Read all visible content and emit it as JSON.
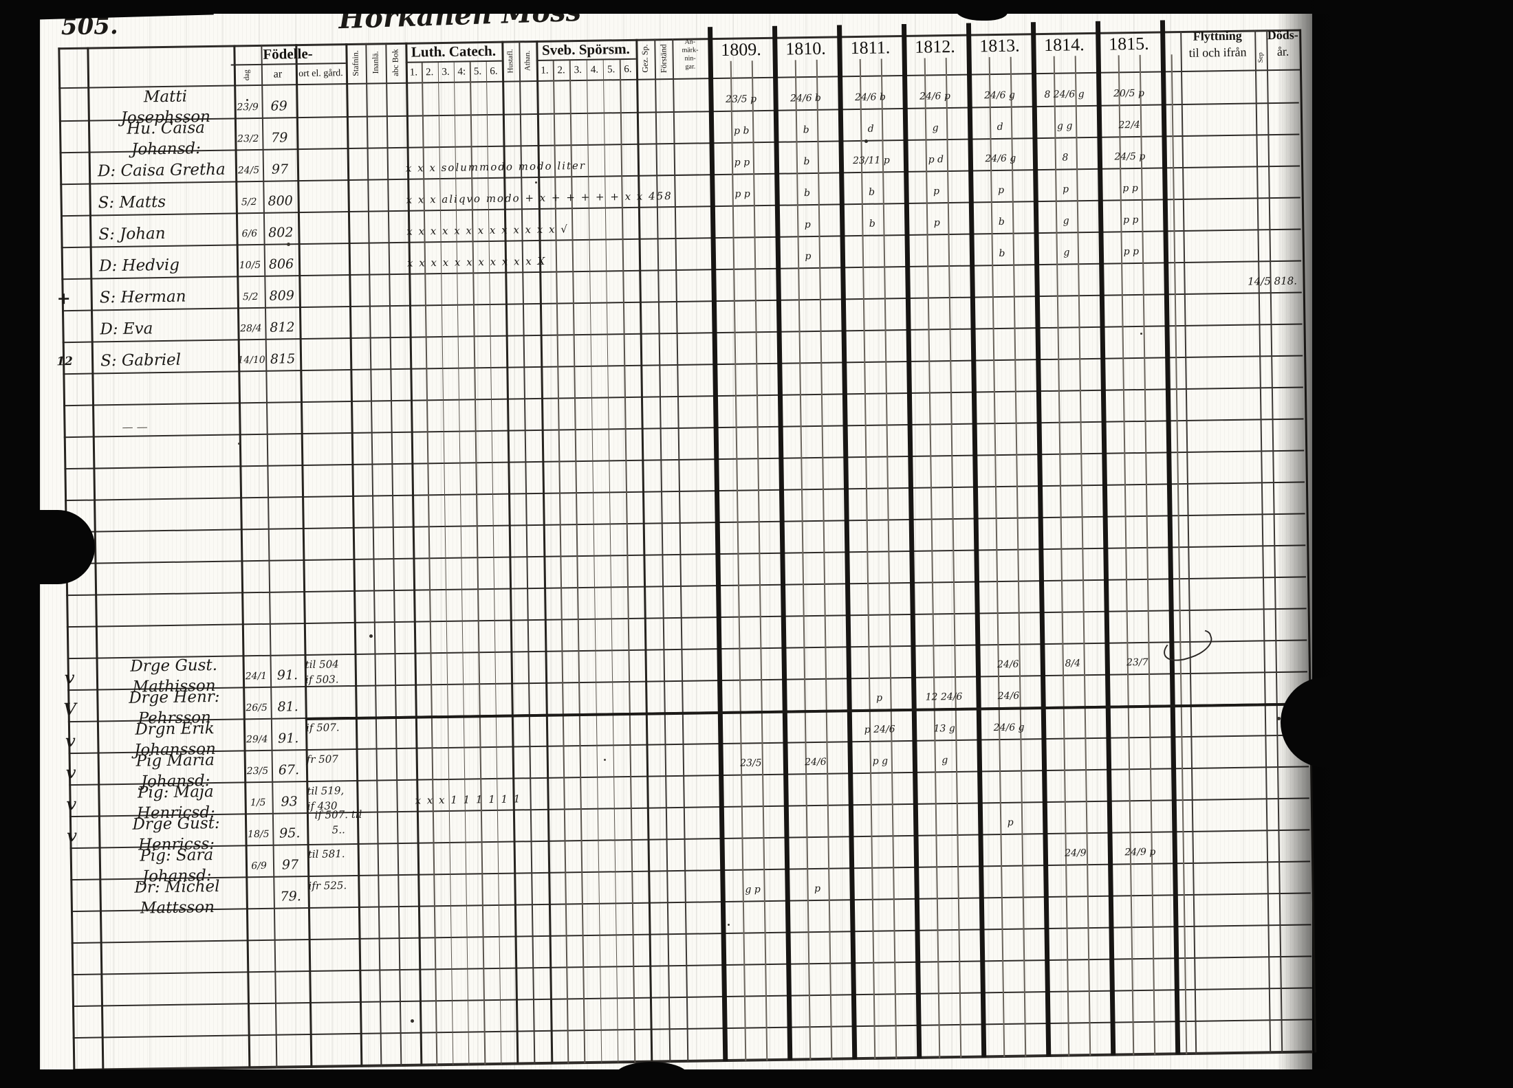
{
  "page": {
    "number": "505.",
    "title": "Horkanen Moss"
  },
  "header": {
    "fodelse": {
      "label": "Födelle-",
      "sub_dag": "dag",
      "sub_ar": "ar",
      "sub_ort": "ort el. gård."
    },
    "vcols1": [
      "Stafnin.",
      "Inanlä.",
      "abc Bok"
    ],
    "luth": {
      "label": "Luth. Catech.",
      "nums": [
        "1.",
        "2.",
        "3.",
        "4:",
        "5.",
        "6."
      ]
    },
    "vcols2": [
      "Hustafl.",
      "Athan."
    ],
    "sveb": {
      "label": "Sveb. Spörsm.",
      "nums": [
        "1.",
        "2.",
        "3.",
        "4.",
        "5.",
        "6."
      ]
    },
    "vcols3": [
      "Gez. Sp.",
      "Förständ"
    ],
    "anm": [
      "An-",
      "märk-",
      "nin-",
      "gar."
    ],
    "years": [
      "1809.",
      "1810.",
      "1811.",
      "1812.",
      "1813.",
      "1814.",
      "1815."
    ],
    "flyttning": [
      "Flyttning",
      "til och ifrån"
    ],
    "sep": "Sep",
    "dods": [
      "Döds-",
      "år."
    ]
  },
  "margin": {
    "cross": "+",
    "note12": "12",
    "dashes": "—  —"
  },
  "rows_upper": [
    {
      "check": "",
      "name": "Matti Josephsson",
      "dag": "23/9",
      "ar": "69",
      "catech": "",
      "years": [
        "23/5 p",
        "24/6 b",
        "24/6 b",
        "24/6 p",
        "24/6 g",
        "8 24/6 g",
        "20/5 p"
      ],
      "dods": ""
    },
    {
      "check": "",
      "name": "Hu. Caisa Johansd:",
      "dag": "23/2",
      "ar": "79",
      "catech": "",
      "years": [
        "p b",
        "b",
        "d",
        "g",
        "d",
        "g g",
        "22/4"
      ],
      "dods": ""
    },
    {
      "check": "",
      "name": "D: Caisa Gretha",
      "dag": "24/5",
      "ar": "97",
      "catech": "x x x    solummodo modo liter",
      "years": [
        "p p",
        "b",
        "23/11 p",
        "p d",
        "24/6 g",
        "8",
        "24/5 p"
      ],
      "dods": ""
    },
    {
      "check": "",
      "name": "S: Matts",
      "dag": "5/2",
      "ar": "800",
      "catech": "x x x   aliqvo modo  + x + + + + + x x  458",
      "years": [
        "p p",
        "b",
        "b",
        "p",
        "p",
        "p",
        "p p"
      ],
      "dods": ""
    },
    {
      "check": "",
      "name": "S: Johan",
      "dag": "6/6",
      "ar": "802",
      "catech": "x x x x x x x x x x x x x √",
      "years": [
        "",
        "p",
        "b",
        "p",
        "b",
        "g",
        "p p"
      ],
      "dods": ""
    },
    {
      "check": "",
      "name": "D: Hedvig",
      "dag": "10/5",
      "ar": "806",
      "catech": "x x x x x x x x x x x X",
      "years": [
        "",
        "p",
        "",
        "",
        "b",
        "g",
        "p p"
      ],
      "dods": ""
    },
    {
      "check": "+",
      "name": "S: Herman",
      "dag": "5/2",
      "ar": "809",
      "catech": "",
      "years": [
        "",
        "",
        "",
        "",
        "",
        "",
        ""
      ],
      "dods": "14/5 818."
    },
    {
      "check": "",
      "name": "D: Eva",
      "dag": "28/4",
      "ar": "812",
      "catech": "",
      "years": [
        "",
        "",
        "",
        "",
        "",
        "",
        ""
      ],
      "dods": ""
    },
    {
      "check": "12",
      "name": "S: Gabriel",
      "dag": "14/10",
      "ar": "815",
      "catech": "",
      "years": [
        "",
        "",
        "",
        "",
        "",
        "",
        ""
      ],
      "dods": ""
    }
  ],
  "rows_lower": [
    {
      "check": "v",
      "name": "Drge Gust. Mathisson",
      "dag": "24/1",
      "ar": "91.",
      "ort": [
        "til 504",
        "if 503."
      ],
      "catech": "",
      "years": [
        "",
        "",
        "",
        "",
        "24/6",
        "8/4",
        "23/7"
      ]
    },
    {
      "check": "V",
      "name": "Drge Henr: Pehrsson",
      "dag": "26/5",
      "ar": "81.",
      "ort": [
        "",
        ""
      ],
      "catech": "",
      "years": [
        "",
        "",
        "p",
        "12 24/6",
        "24/6",
        "",
        ""
      ]
    },
    {
      "check": "v",
      "name": "Drgn Erik Johansson",
      "dag": "29/4",
      "ar": "91.",
      "ort": [
        "if 507.",
        ""
      ],
      "catech": "",
      "years": [
        "",
        "",
        "p 24/6",
        "13 g",
        "24/6 g",
        "",
        ""
      ]
    },
    {
      "check": "v",
      "name": "Pig Maria Johansd:",
      "dag": "23/5",
      "ar": "67.",
      "ort": [
        "fr 507",
        ""
      ],
      "catech": "",
      "years": [
        "23/5",
        "24/6",
        "p g",
        "g",
        "",
        "",
        ""
      ]
    },
    {
      "check": "v",
      "name": "Pig: Maja Henricsd:",
      "dag": "1/5",
      "ar": "93",
      "ort": [
        "til 519,",
        "if 430"
      ],
      "catech": "x x x   1 1 1 1 1 1",
      "years": [
        "",
        "",
        "",
        "",
        "",
        "",
        ""
      ]
    },
    {
      "check": "v",
      "name": "Drge Gust: Henricss:",
      "dag": "18/5",
      "ar": "95.",
      "ort": [
        "if 507. til 5..",
        ""
      ],
      "catech": "",
      "years": [
        "",
        "",
        "",
        "",
        "p",
        "",
        ""
      ]
    },
    {
      "check": "",
      "name": "Pig: Sara Johansd:",
      "dag": "6/9",
      "ar": "97",
      "ort": [
        "til 581.",
        ""
      ],
      "catech": "",
      "years": [
        "",
        "",
        "",
        "",
        "",
        "24/9",
        "24/9 p"
      ]
    },
    {
      "check": "",
      "name": "Dr: Michel Mattsson",
      "dag": "",
      "ar": "79.",
      "ort": [
        "ifr 525.",
        ""
      ],
      "catech": "",
      "years": [
        "g p",
        "p",
        "",
        "",
        "",
        "",
        ""
      ]
    }
  ]
}
